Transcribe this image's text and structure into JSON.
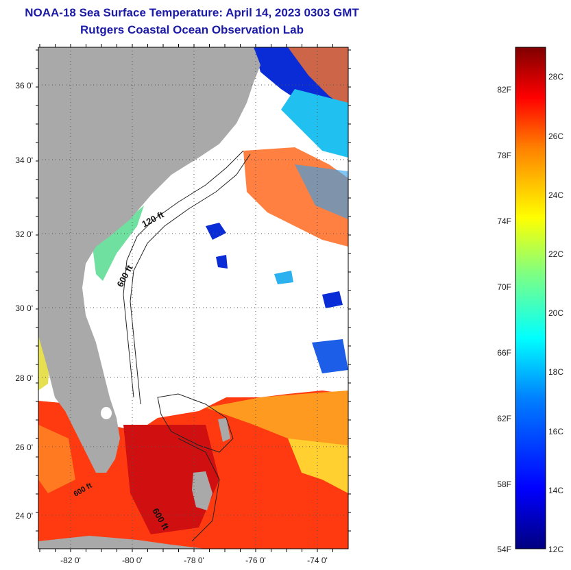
{
  "titles": {
    "line1": "NOAA-18 Sea Surface Temperature:  April 14, 2023 0303 GMT",
    "line2": "Rutgers Coastal Ocean Observation Lab"
  },
  "map": {
    "lat_labels": [
      "36 0'",
      "34 0'",
      "32 0'",
      "30 0'",
      "28 0'",
      "26 0'",
      "24 0'"
    ],
    "lat_values": [
      36,
      34,
      32,
      30,
      28,
      26,
      24
    ],
    "lon_labels": [
      "-82 0'",
      "-80 0'",
      "-78 0'",
      "-76 0'",
      "-74 0'"
    ],
    "lon_values": [
      -82,
      -80,
      -78,
      -76,
      -74
    ],
    "lat_range": [
      23.1,
      37.1
    ],
    "lon_range": [
      -83.0,
      -73.0
    ],
    "contour_labels": [
      "120 ft",
      "600 ft",
      "600 ft",
      "600 ft"
    ],
    "colors": {
      "land": "#a9a9a9",
      "cloud": "#ffffff",
      "gridline": "#555555"
    }
  },
  "colorbar": {
    "fahrenheit_labels": [
      "82F",
      "78F",
      "74F",
      "70F",
      "66F",
      "62F",
      "58F",
      "54F"
    ],
    "celsius_labels": [
      "28C",
      "26C",
      "24C",
      "22C",
      "20C",
      "18C",
      "16C",
      "14C",
      "12C"
    ],
    "range_celsius": [
      12,
      29
    ],
    "palette": [
      "#00007f",
      "#0000ff",
      "#0080ff",
      "#00ffff",
      "#80ff80",
      "#ffff00",
      "#ff8000",
      "#ff0000",
      "#7f0000"
    ]
  }
}
